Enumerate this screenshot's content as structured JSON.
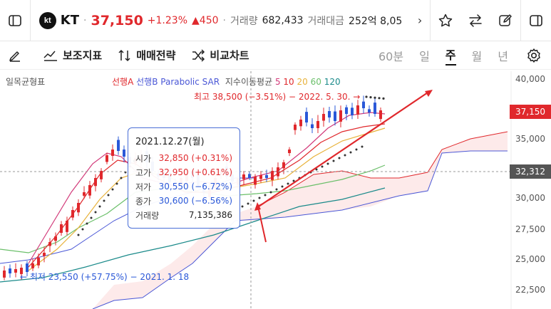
{
  "header": {
    "logo_text": "kt",
    "name": "KT",
    "price": "37,150",
    "change_pct": "+1.23%",
    "change_abs": "▲450",
    "volume_label": "거래량",
    "volume": "682,433",
    "amount_label": "거래대금",
    "amount": "252억 8,05"
  },
  "toolbar": {
    "indicators": "보조지표",
    "strategy": "매매전략",
    "compare": "비교차트",
    "periods": [
      "60분",
      "일",
      "주",
      "월",
      "년"
    ],
    "active_period": "주"
  },
  "legend": {
    "ichimoku": "일목균형표",
    "span_a": "선행A",
    "span_b": "선행B",
    "sar": "Parabolic SAR",
    "ma_label": "지수이동평균",
    "ma_periods": [
      "5",
      "10",
      "20",
      "60",
      "120"
    ]
  },
  "annotations": {
    "high": "최고 38,500 (−3.51%) − 2022. 5. 30. →",
    "low": "← 최저 23,550 (+57.75%) − 2021. 1. 18"
  },
  "tooltip": {
    "date": "2021.12.27(월)",
    "open_label": "시가",
    "open": "32,850 (+0.31%)",
    "high_label": "고가",
    "high": "32,950 (+0.61%)",
    "low_label": "저가",
    "low": "30,550 (−6.72%)",
    "close_label": "종가",
    "close": "30,600 (−6.56%)",
    "vol_label": "거래량",
    "vol": "7,135,386"
  },
  "axis": {
    "ticks": [
      "40,000",
      "35,000",
      "30,000",
      "27,500",
      "25,000",
      "22,500"
    ],
    "current_price_tag": "37,150",
    "crosshair_tag": "32,312"
  },
  "colors": {
    "up": "#e0282c",
    "down": "#2a58d8",
    "accent": "#4a6fd6"
  }
}
